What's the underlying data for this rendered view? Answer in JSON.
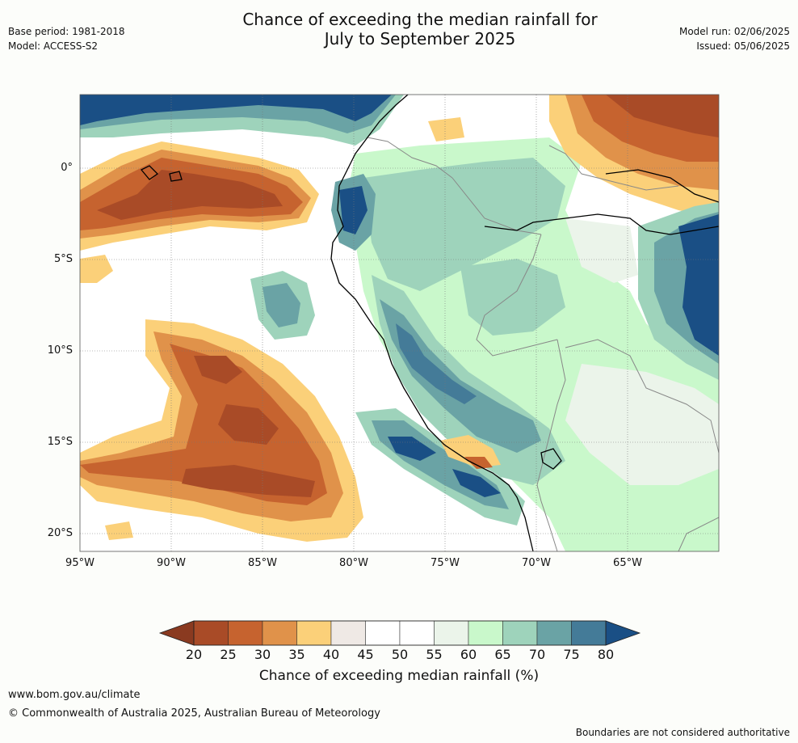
{
  "title_line1": "Chance of exceeding the median rainfall for",
  "title_line2": "July to September 2025",
  "base_period": "Base period: 1981-2018",
  "model": "Model: ACCESS-S2",
  "model_run": "Model run: 02/06/2025",
  "issued": "Issued: 05/06/2025",
  "lat_labels": [
    "0°",
    "5°S",
    "10°S",
    "15°S",
    "20°S"
  ],
  "lon_labels": [
    "95°W",
    "90°W",
    "85°W",
    "80°W",
    "75°W",
    "70°W",
    "65°W"
  ],
  "colorbar": {
    "ticks": [
      "20",
      "25",
      "30",
      "35",
      "40",
      "45",
      "50",
      "55",
      "60",
      "65",
      "70",
      "75",
      "80"
    ],
    "colors": [
      "#a94b27",
      "#c6632f",
      "#e0924a",
      "#fbd079",
      "#efe9e5",
      "#ffffff",
      "#ffffff",
      "#ebf4ea",
      "#c9f8cb",
      "#9ed3bb",
      "#6aa3a5",
      "#447b98"
    ],
    "low_color": "#8a3a20",
    "high_color": "#1a4f85",
    "title": "Chance of exceeding median rainfall (%)"
  },
  "footer_url": "www.bom.gov.au/climate",
  "footer_copyright": "© Commonwealth of Australia 2025, Australian Bureau of Meteorology",
  "footer_note": "Boundaries are not considered authoritative"
}
